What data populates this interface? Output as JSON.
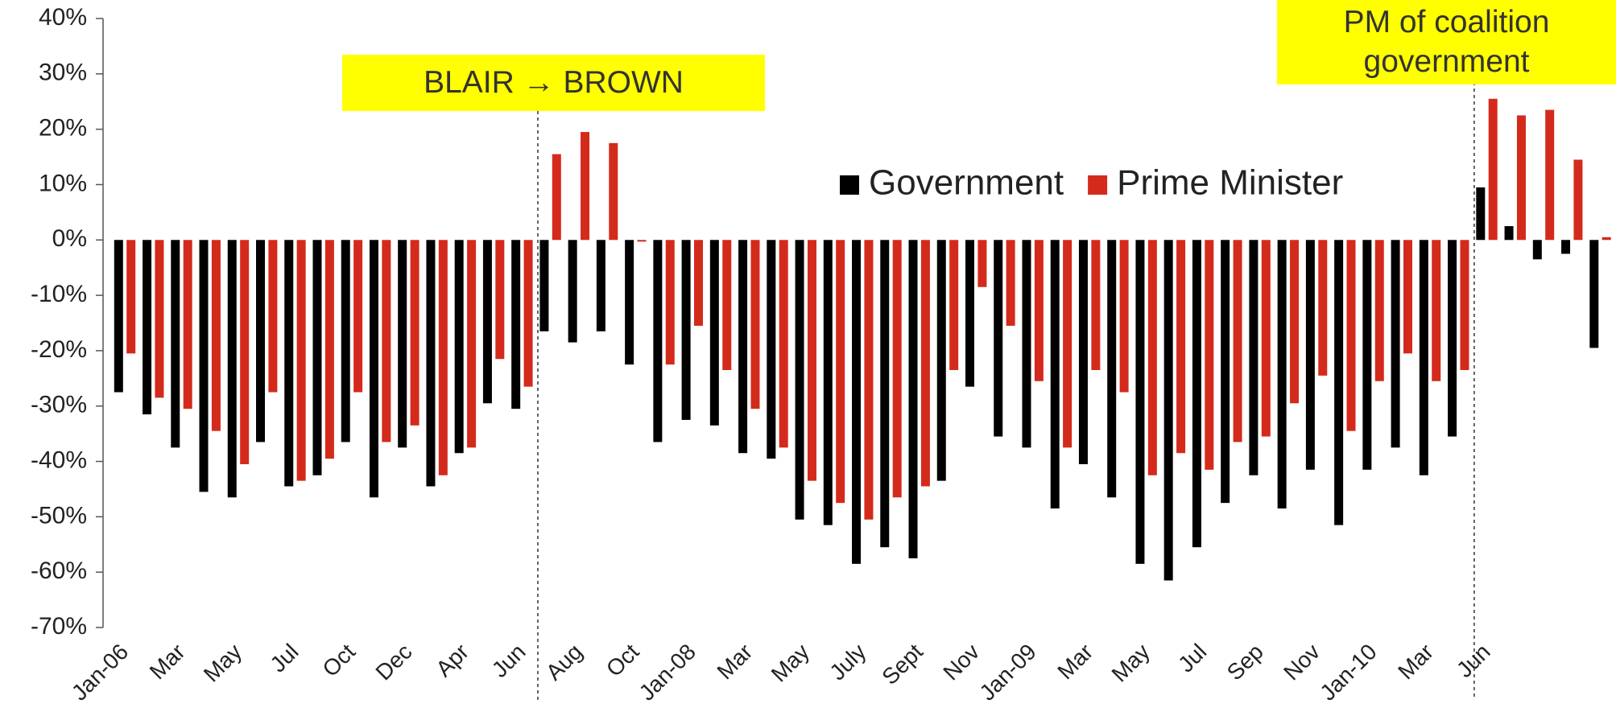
{
  "chart_data": {
    "type": "bar",
    "categories": [
      "Jan-06",
      null,
      "Mar",
      null,
      "May",
      null,
      "Jul",
      null,
      "Oct",
      null,
      "Dec",
      null,
      "Apr",
      null,
      "Jun",
      null,
      "Aug",
      null,
      "Oct",
      null,
      "Jan-08",
      null,
      "Mar",
      null,
      "May",
      null,
      "July",
      null,
      "Sept",
      null,
      "Nov",
      null,
      "Jan-09",
      null,
      "Mar",
      null,
      "May",
      null,
      "Jul",
      null,
      "Sep",
      null,
      "Nov",
      null,
      "Jan-10",
      null,
      "Mar",
      null,
      "Jun",
      null,
      null,
      null,
      null
    ],
    "series": [
      {
        "name": "Government",
        "color": "#000000",
        "values": [
          -27.5,
          -31.5,
          -37.5,
          -45.5,
          -46.5,
          -36.5,
          -44.5,
          -42.5,
          -36.5,
          -46.5,
          -37.5,
          -44.5,
          -38.5,
          -29.5,
          -30.5,
          -16.5,
          -18.5,
          -16.5,
          -22.5,
          -36.5,
          -32.5,
          -33.5,
          -38.5,
          -39.5,
          -50.5,
          -51.5,
          -58.5,
          -55.5,
          -57.5,
          -43.5,
          -26.5,
          -35.5,
          -37.5,
          -48.5,
          -40.5,
          -46.5,
          -58.5,
          -61.5,
          -55.5,
          -47.5,
          -42.5,
          -48.5,
          -41.5,
          -51.5,
          -41.5,
          -37.5,
          -42.5,
          -35.5,
          9.5,
          2.5,
          -3.5,
          -2.5,
          -19.5
        ]
      },
      {
        "name": "Prime Minister",
        "color": "#d42a1b",
        "values": [
          -20.5,
          -28.5,
          -30.5,
          -34.5,
          -40.5,
          -27.5,
          -43.5,
          -39.5,
          -27.5,
          -36.5,
          -33.5,
          -42.5,
          -37.5,
          -21.5,
          -26.5,
          15.5,
          19.5,
          17.5,
          -0.3,
          -22.5,
          -15.5,
          -23.5,
          -30.5,
          -37.5,
          -43.5,
          -47.5,
          -50.5,
          -46.5,
          -44.5,
          -23.5,
          -8.5,
          -15.5,
          -25.5,
          -37.5,
          -23.5,
          -27.5,
          -42.5,
          -38.5,
          -41.5,
          -36.5,
          -35.5,
          -29.5,
          -24.5,
          -34.5,
          -25.5,
          -20.5,
          -25.5,
          -23.5,
          25.5,
          22.5,
          23.5,
          14.5,
          0.5
        ]
      }
    ],
    "ylim": [
      -70,
      40
    ],
    "yticks": [
      {
        "value": -70,
        "label": "-70%"
      },
      {
        "value": -60,
        "label": "-60%"
      },
      {
        "value": -50,
        "label": "-50%"
      },
      {
        "value": -40,
        "label": "-40%"
      },
      {
        "value": -30,
        "label": "-30%"
      },
      {
        "value": -20,
        "label": "-20%"
      },
      {
        "value": -10,
        "label": "-10%"
      },
      {
        "value": 0,
        "label": "0%"
      },
      {
        "value": 10,
        "label": "10%"
      },
      {
        "value": 20,
        "label": "20%"
      },
      {
        "value": 30,
        "label": "30%"
      },
      {
        "value": 40,
        "label": "40%"
      }
    ],
    "grid": false,
    "annotations": [
      {
        "text": "BLAIR → BROWN"
      },
      {
        "text": "PM of coalition government"
      }
    ]
  }
}
